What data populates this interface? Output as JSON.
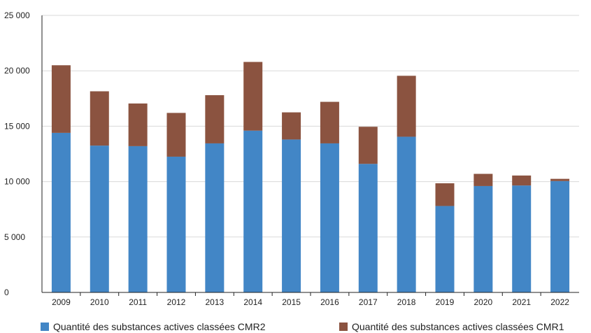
{
  "chart_data": {
    "type": "bar",
    "stacked": true,
    "categories": [
      "2009",
      "2010",
      "2011",
      "2012",
      "2013",
      "2014",
      "2015",
      "2016",
      "2017",
      "2018",
      "2019",
      "2020",
      "2021",
      "2022"
    ],
    "series": [
      {
        "name": "Quantité des substances actives classées CMR2",
        "color": "#4286c6",
        "values": [
          14400,
          13250,
          13200,
          12250,
          13450,
          14600,
          13800,
          13450,
          11600,
          14050,
          7800,
          9600,
          9650,
          10050
        ]
      },
      {
        "name": "Quantité des substances actives classées CMR1",
        "color": "#8b5340",
        "values": [
          6100,
          4900,
          3850,
          3950,
          4350,
          6200,
          2450,
          3750,
          3350,
          5500,
          2050,
          1100,
          900,
          200
        ]
      }
    ],
    "ylim": [
      0,
      25000
    ],
    "yticks": [
      0,
      5000,
      10000,
      15000,
      20000,
      25000
    ],
    "ytick_labels": [
      "0",
      "5 000",
      "10 000",
      "15 000",
      "20 000",
      "25 000"
    ],
    "grid": "horizontal",
    "legend_position": "bottom",
    "title": "",
    "xlabel": "",
    "ylabel": ""
  }
}
